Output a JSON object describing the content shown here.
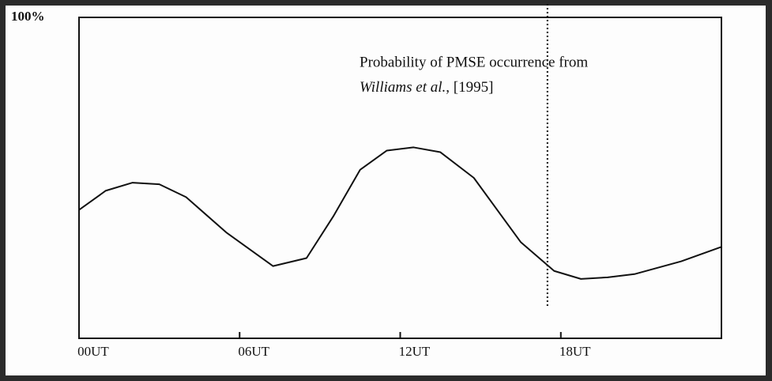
{
  "chart_data": {
    "type": "line",
    "annotation": [
      "Probability of PMSE occurrence from",
      "Williams et al.",
      ", [1995]"
    ],
    "x": [
      0,
      1,
      2,
      3,
      4,
      5.5,
      7.25,
      8.5,
      9.5,
      10.5,
      11.5,
      12.5,
      13.5,
      14.75,
      16.5,
      17.75,
      18.75,
      19.75,
      20.75,
      22.5,
      24
    ],
    "series": [
      {
        "color": "#111111",
        "values": [
          40,
          46,
          48.5,
          48,
          44,
          33,
          22.5,
          25,
          38,
          52.5,
          58.5,
          59.5,
          58,
          50,
          30,
          21,
          18.5,
          19,
          20,
          24,
          28.5
        ]
      }
    ],
    "xlim": [
      0,
      24
    ],
    "xticks": [
      {
        "value": 0,
        "label": "00UT"
      },
      {
        "value": 6,
        "label": "06UT"
      },
      {
        "value": 12,
        "label": "12UT"
      },
      {
        "value": 18,
        "label": "18UT"
      }
    ],
    "ylim": [
      0,
      100
    ],
    "yticks": [
      {
        "value": 100,
        "label": "100%"
      }
    ],
    "vline": 17.5
  }
}
